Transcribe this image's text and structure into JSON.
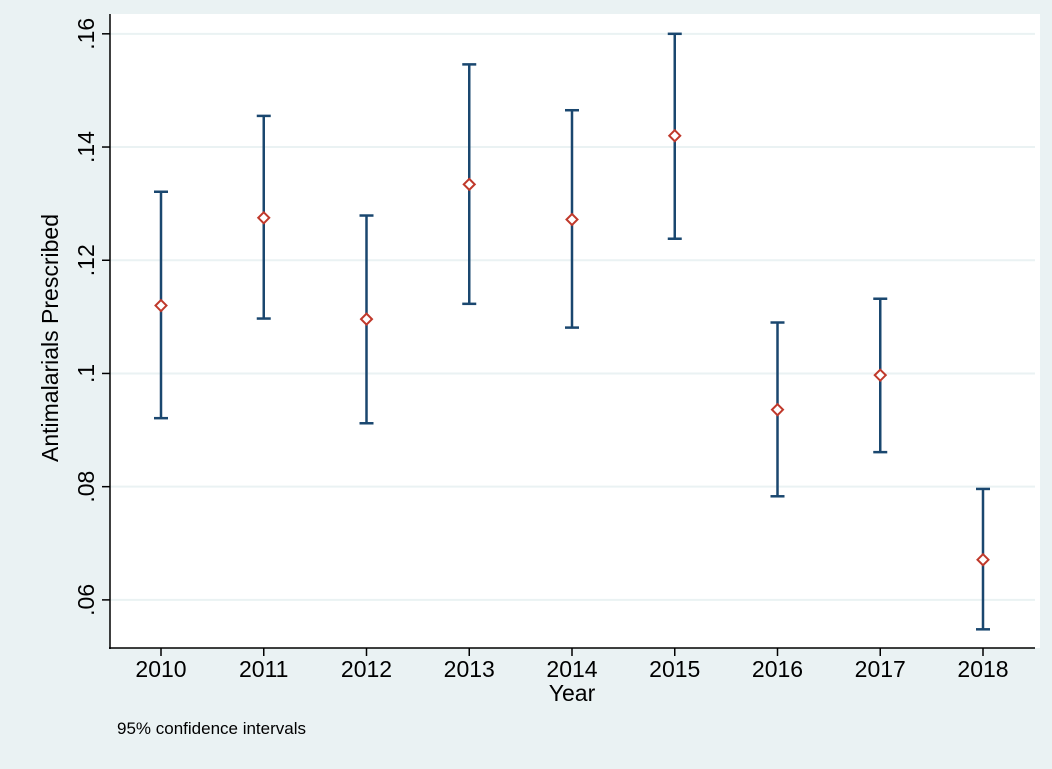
{
  "chart_data": {
    "type": "scatter",
    "subtype": "point-estimate-with-confidence-intervals",
    "xlabel": "Year",
    "ylabel": "Antimalarials Prescribed",
    "note": "95% confidence intervals",
    "categories": [
      "2010",
      "2011",
      "2012",
      "2013",
      "2014",
      "2015",
      "2016",
      "2017",
      "2018"
    ],
    "estimates": [
      0.112,
      0.1275,
      0.1096,
      0.1334,
      0.1272,
      0.142,
      0.0936,
      0.0997,
      0.0671
    ],
    "ci_lower": [
      0.0921,
      0.1097,
      0.0912,
      0.1123,
      0.1081,
      0.1238,
      0.0783,
      0.0861,
      0.0548
    ],
    "ci_upper": [
      0.1321,
      0.1455,
      0.1279,
      0.1546,
      0.1465,
      0.16,
      0.109,
      0.1132,
      0.0796
    ],
    "yticks": [
      0.06,
      0.08,
      0.1,
      0.12,
      0.14,
      0.16
    ],
    "ytick_labels": [
      ".06",
      ".08",
      ".1",
      ".12",
      ".14",
      ".16"
    ],
    "ylim": [
      0.0515,
      0.1635
    ],
    "grid": true,
    "colors": {
      "background": "#eaf2f3",
      "plot_background": "#ffffff",
      "ci_line": "#1a476f",
      "marker": "#c0392b",
      "gridline": "#eaf2f3",
      "axis": "#000000"
    }
  }
}
